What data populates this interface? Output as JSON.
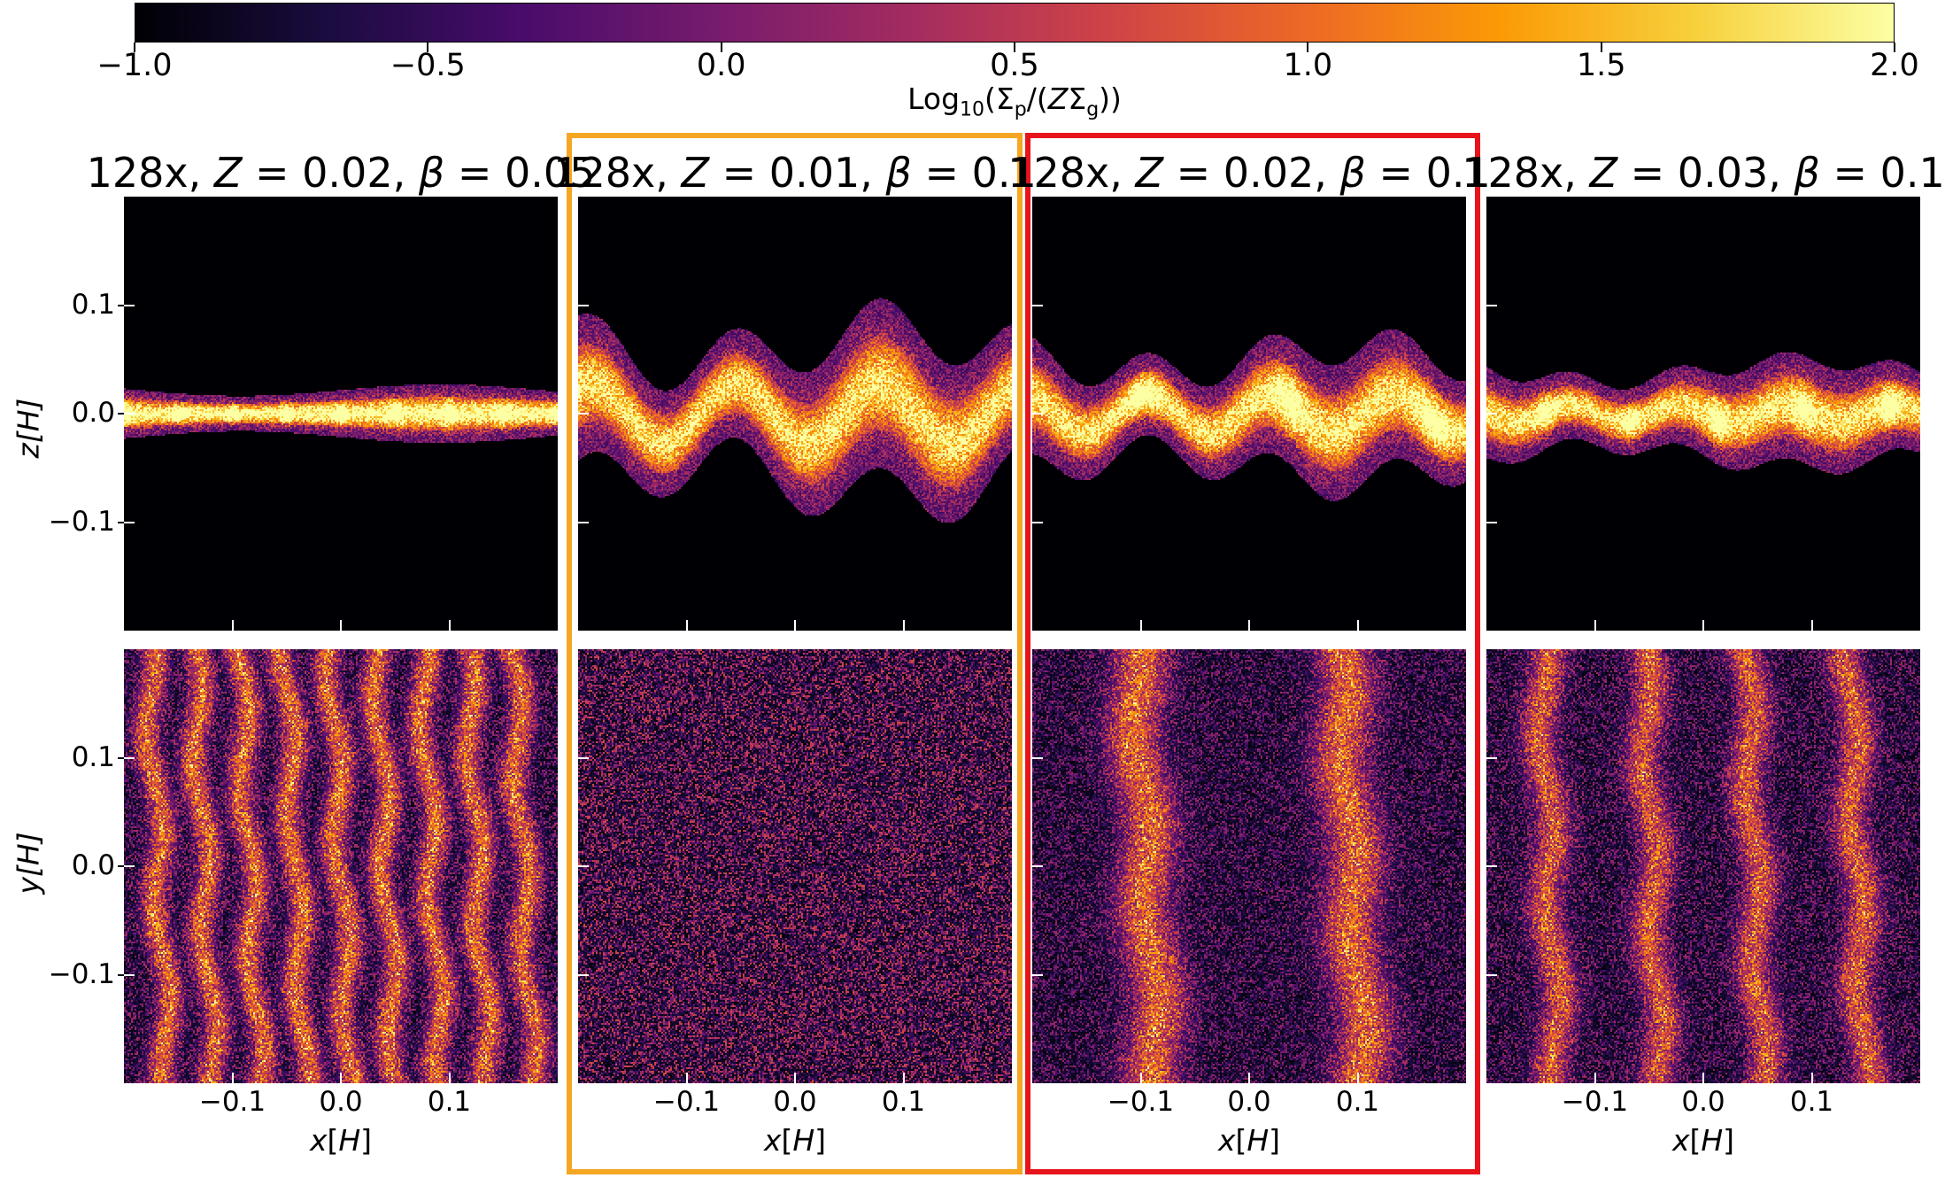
{
  "colorbar": {
    "ticks": [
      "−1.0",
      "−0.5",
      "0.0",
      "0.5",
      "1.0",
      "1.5",
      "2.0"
    ],
    "tick_values": [
      -1.0,
      -0.5,
      0.0,
      0.5,
      1.0,
      1.5,
      2.0
    ],
    "range": [
      -1.0,
      2.0
    ],
    "label": "Log₁₀(Σₚ/(ZΣ_g))",
    "label_main": "Log",
    "label_sub": "10",
    "label_rest": "(Σ",
    "label_sub_p": "p",
    "label_mid": "/(",
    "label_Z": "Z",
    "label_sigma": "Σ",
    "label_sub_g": "g",
    "label_end": "))",
    "colormap": [
      "#000004",
      "#1b0c41",
      "#4a0c6b",
      "#781c6d",
      "#a52c60",
      "#cf4446",
      "#ed6925",
      "#fb9b06",
      "#f7d13d",
      "#fcffa4"
    ]
  },
  "panels": [
    {
      "title": "128x, Z = 0.02, β = 0.05",
      "t_prefix": "128x, ",
      "t_z": "Z",
      "t_zval": " = 0.02, ",
      "t_b": "β",
      "t_bval": " = 0.05",
      "highlight": ""
    },
    {
      "title": "128x, Z = 0.01, β = 0.1",
      "t_prefix": "128x, ",
      "t_z": "Z",
      "t_zval": " = 0.01, ",
      "t_b": "β",
      "t_bval": " = 0.1",
      "highlight": "#f5a623"
    },
    {
      "title": "128x, Z = 0.02, β = 0.1",
      "t_prefix": "128x, ",
      "t_z": "Z",
      "t_zval": " = 0.02, ",
      "t_b": "β",
      "t_bval": " = 0.1",
      "highlight": "#e8141c"
    },
    {
      "title": "128x, Z = 0.03, β = 0.1",
      "t_prefix": "128x, ",
      "t_z": "Z",
      "t_zval": " = 0.03, ",
      "t_b": "β",
      "t_bval": " = 0.1",
      "highlight": ""
    }
  ],
  "axes": {
    "top_ylabel": "z[H]",
    "top_ylabel_var": "z",
    "bottom_ylabel": "y[H]",
    "bottom_ylabel_var": "y",
    "xlabel": "x[H]",
    "xlabel_var": "x",
    "unit_open": "[",
    "unit": "H",
    "unit_close": "]",
    "yticks": [
      "0.1",
      "0.0",
      "−0.1"
    ],
    "xticks": [
      "−0.1",
      "0.0",
      "0.1"
    ],
    "range": [
      -0.2,
      0.2
    ]
  },
  "chart_data": {
    "type": "heatmap",
    "colorbar_range": [
      -1.0,
      2.0
    ],
    "x_range": [
      -0.2,
      0.2
    ],
    "y_range": [
      -0.2,
      0.2
    ],
    "rows": [
      "x-z plane",
      "x-y plane"
    ],
    "columns": [
      "128x, Z = 0.02, β = 0.05",
      "128x, Z = 0.01, β = 0.1",
      "128x, Z = 0.02, β = 0.1",
      "128x, Z = 0.03, β = 0.1"
    ]
  }
}
